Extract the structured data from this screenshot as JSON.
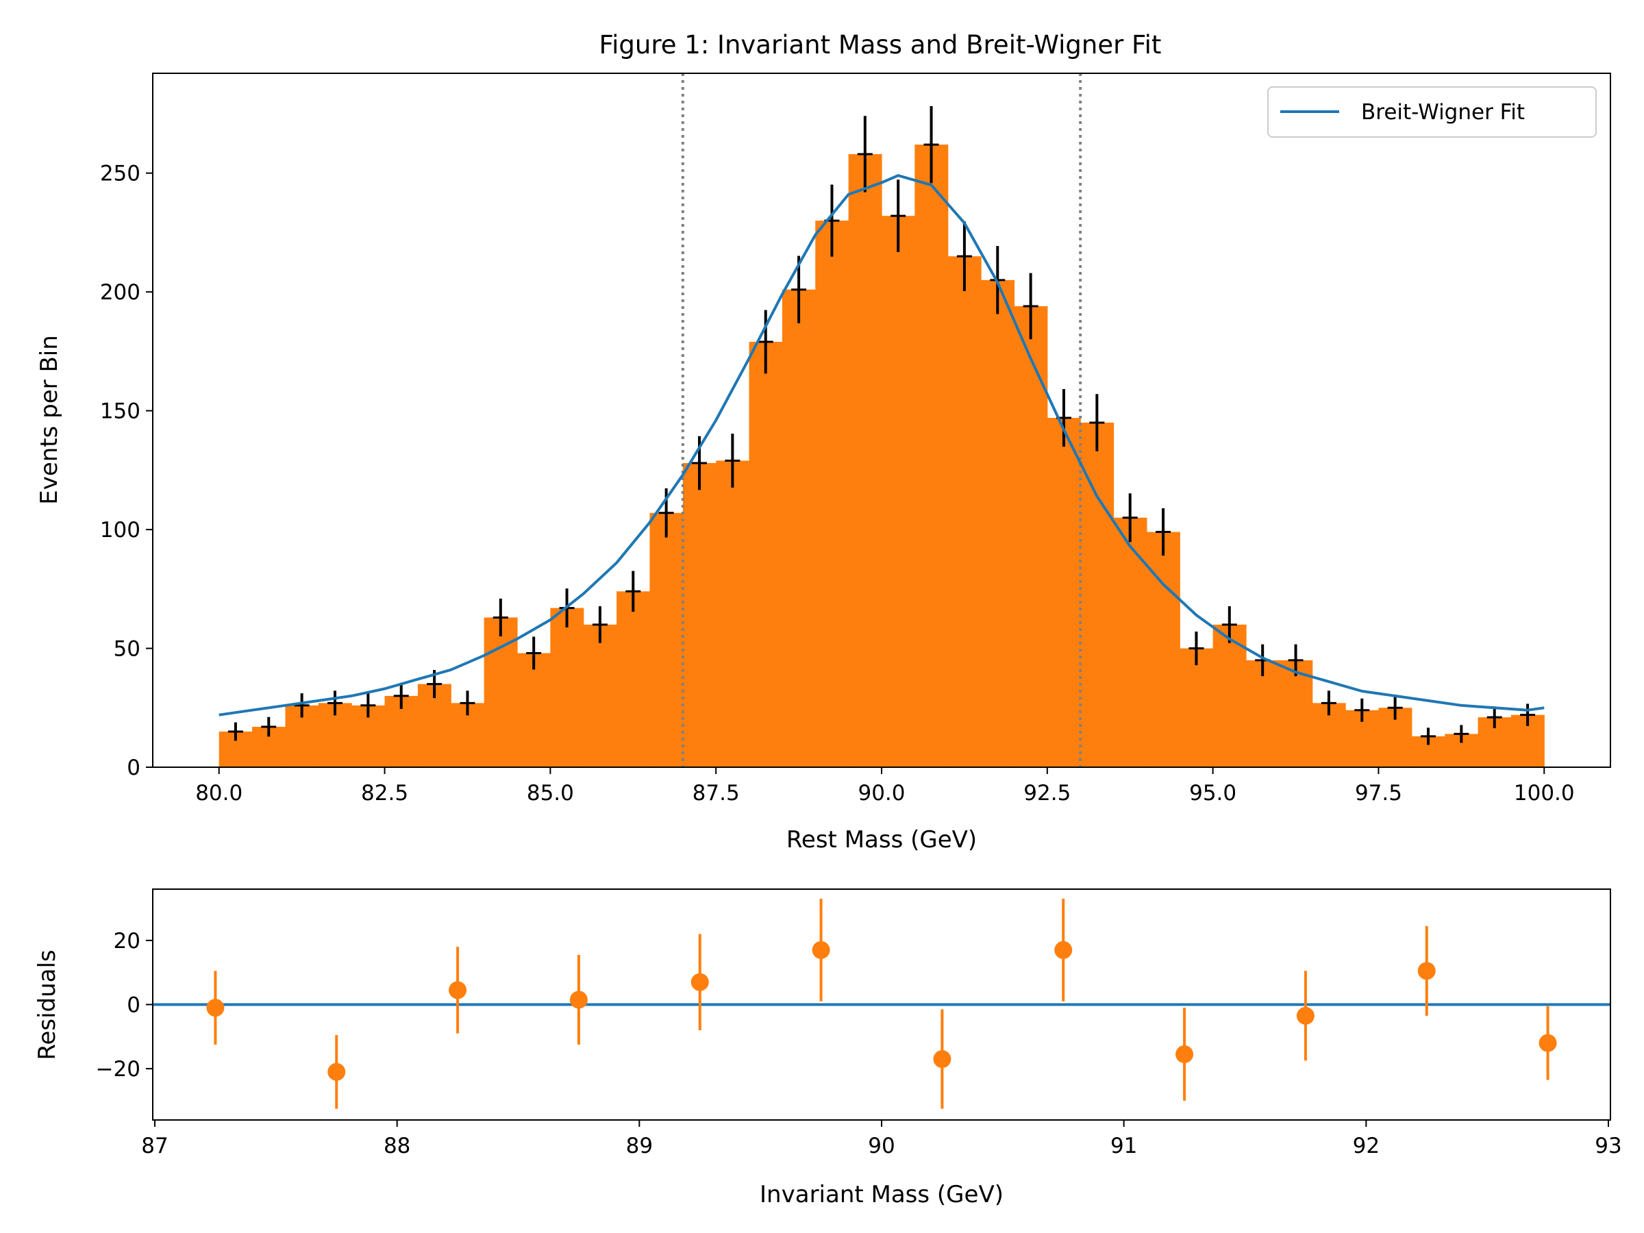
{
  "figure_title": "Figure 1: Invariant Mass and Breit-Wigner Fit",
  "colors": {
    "histogram": "#ff7f0e",
    "fit_line": "#1f77b4",
    "error_bars": "#000000",
    "range_lines": "#808080",
    "residual_points": "#ff7f0e",
    "zero_line": "#1f77b4"
  },
  "chart_data": [
    {
      "type": "bar",
      "title": "Figure 1: Invariant Mass and Breit-Wigner Fit",
      "xlabel": "Rest Mass (GeV)",
      "ylabel": "Events per Bin",
      "xlim": [
        79.0,
        101.0
      ],
      "ylim": [
        0,
        292
      ],
      "x_ticks": [
        "80.0",
        "82.5",
        "85.0",
        "87.5",
        "90.0",
        "92.5",
        "95.0",
        "97.5",
        "100.0"
      ],
      "y_ticks": [
        "0",
        "50",
        "100",
        "150",
        "200",
        "250"
      ],
      "bin_edges_start": 80.0,
      "bin_width": 0.5,
      "counts": [
        15,
        17,
        26,
        27,
        26,
        30,
        35,
        27,
        63,
        48,
        67,
        60,
        74,
        107,
        128,
        129,
        179,
        201,
        230,
        258,
        232,
        262,
        215,
        205,
        194,
        147,
        145,
        105,
        99,
        50,
        60,
        45,
        45,
        27,
        24,
        25,
        13,
        14,
        21,
        22
      ],
      "error_bars": "sqrt(N) at bin centers",
      "vertical_lines": [
        87.0,
        93.0
      ],
      "series": [
        {
          "name": "Breit-Wigner Fit",
          "x": [
            80.0,
            80.5,
            81.0,
            81.5,
            82.0,
            82.5,
            83.0,
            83.5,
            84.0,
            84.5,
            85.0,
            85.5,
            86.0,
            86.5,
            87.0,
            87.5,
            88.0,
            88.5,
            89.0,
            89.5,
            90.0,
            90.25,
            90.75,
            91.25,
            91.75,
            92.25,
            92.75,
            93.25,
            93.75,
            94.25,
            94.75,
            95.25,
            95.75,
            96.25,
            96.75,
            97.25,
            97.75,
            98.25,
            98.75,
            99.25,
            99.75,
            100.0
          ],
          "y": [
            22,
            24,
            26,
            28,
            30,
            33,
            37,
            41,
            47,
            54,
            62,
            73,
            86,
            103,
            123,
            146,
            172,
            199,
            224,
            241,
            246,
            249,
            245,
            229,
            204,
            172,
            142,
            114,
            93,
            77,
            64,
            54,
            46,
            40,
            36,
            32,
            30,
            28,
            26,
            25,
            24,
            25
          ]
        }
      ],
      "legend": {
        "placement": "top-right",
        "entries": [
          "Breit-Wigner Fit"
        ]
      }
    },
    {
      "type": "scatter",
      "xlabel": "Invariant Mass (GeV)",
      "ylabel": "Residuals",
      "xlim": [
        87.0,
        93.0
      ],
      "ylim": [
        -36,
        36
      ],
      "x_ticks": [
        "87",
        "88",
        "89",
        "90",
        "91",
        "92",
        "93"
      ],
      "y_ticks": [
        "20",
        "0",
        "−20"
      ],
      "zero_line": 0,
      "series": [
        {
          "name": "",
          "x": [
            87.25,
            87.75,
            88.25,
            88.75,
            89.25,
            89.75,
            90.25,
            90.75,
            91.25,
            91.75,
            92.25,
            92.75
          ],
          "y": [
            -1,
            -21,
            4.5,
            1.5,
            7,
            17,
            -17,
            17,
            -15.5,
            -3.5,
            10.5,
            -12
          ],
          "yerr": [
            11.5,
            11.5,
            13.5,
            14,
            15,
            16,
            15.5,
            16,
            14.5,
            14,
            14,
            11.5
          ]
        }
      ]
    }
  ]
}
